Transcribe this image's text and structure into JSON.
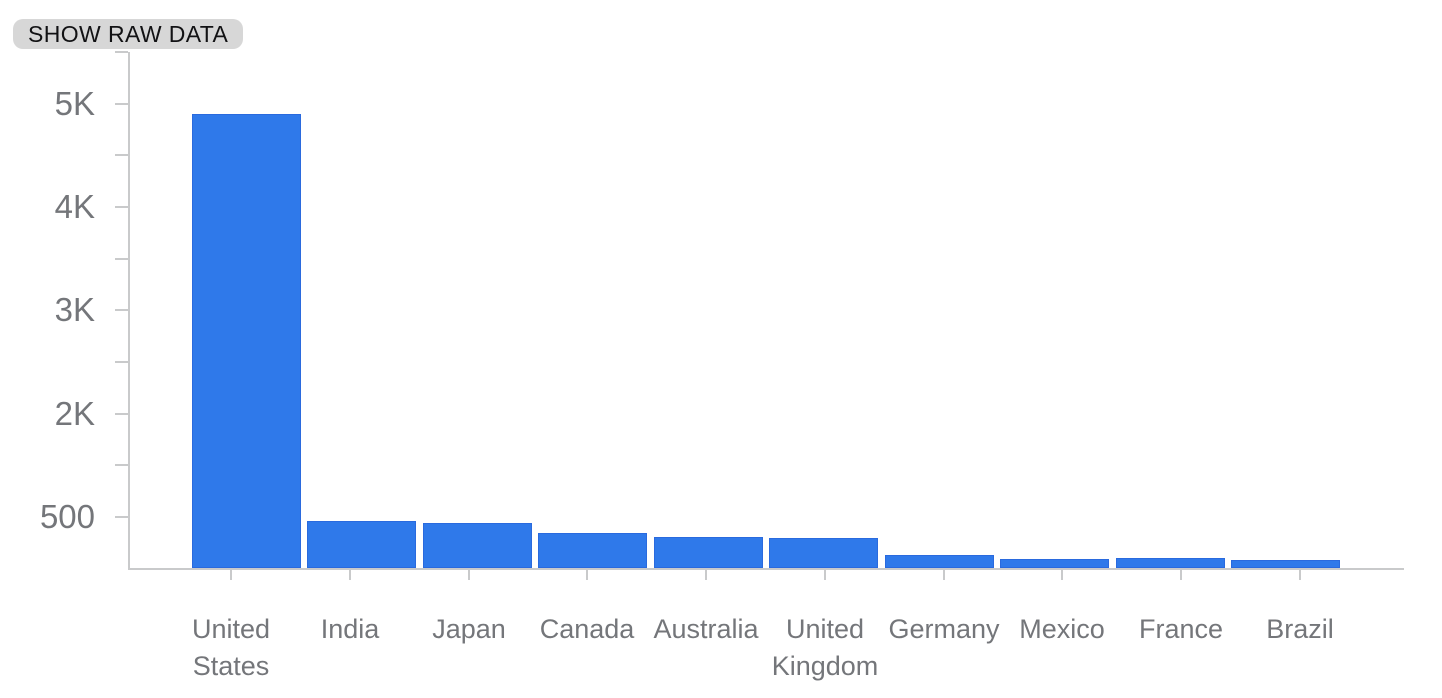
{
  "toolbar": {
    "show_raw_data_label": "SHOW RAW DATA"
  },
  "colors": {
    "bar_fill": "#2f79ea",
    "bar_border": "#2a6ade",
    "axis_gray": "#c9cacb",
    "label_gray": "#74767a",
    "button_bg": "#d7d7d7",
    "button_text": "#121214"
  },
  "chart_data": {
    "type": "bar",
    "title": "",
    "xlabel": "",
    "ylabel": "",
    "categories": [
      "United States",
      "India",
      "Japan",
      "Canada",
      "Australia",
      "United Kingdom",
      "Germany",
      "Mexico",
      "France",
      "Brazil"
    ],
    "values": [
      4890,
      510,
      480,
      375,
      330,
      320,
      140,
      100,
      105,
      85
    ],
    "y_tick_labels_top_to_bottom": [
      "5K",
      "4K",
      "3K",
      "2K",
      "500"
    ],
    "ylim": [
      0,
      5560
    ],
    "grid": false,
    "legend": "none",
    "bar_orientation": "vertical"
  }
}
